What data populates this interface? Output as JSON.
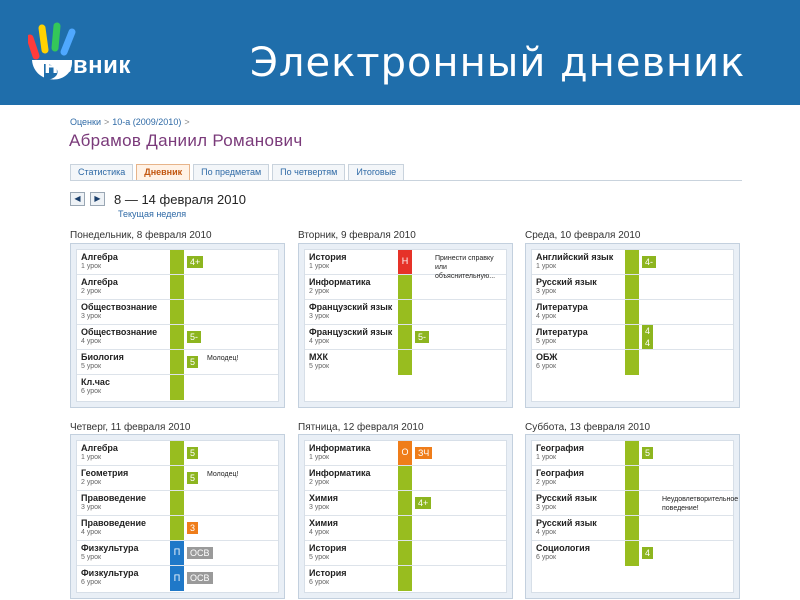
{
  "header": {
    "logo_text": "невник",
    "slide_title": "Электронный дневник"
  },
  "breadcrumb": [
    "Оценки",
    "10-а (2009/2010)"
  ],
  "student_name": "Абрамов Даниил Романович",
  "tabs": [
    {
      "label": "Статистика",
      "active": false
    },
    {
      "label": "Дневник",
      "active": true
    },
    {
      "label": "По предметам",
      "active": false
    },
    {
      "label": "По четвертям",
      "active": false
    },
    {
      "label": "Итоговые",
      "active": false
    }
  ],
  "week": {
    "prev_icon": "◀",
    "next_icon": "▶",
    "range": "8 — 14 февраля 2010",
    "current_label": "Текущая неделя"
  },
  "colors": {
    "header_bg": "#1f6eab",
    "present": "#98bd1f",
    "absent": "#e63228",
    "sick": "#1f78c8",
    "late": "#ef7d1a"
  },
  "days": [
    {
      "title": "Понедельник, 8 февраля 2010",
      "lessons": [
        {
          "subject": "Алгебра",
          "num": "1 урок",
          "marks": [
            {
              "v": "4+",
              "c": "green"
            }
          ]
        },
        {
          "subject": "Алгебра",
          "num": "2 урок"
        },
        {
          "subject": "Обществознание",
          "num": "3 урок"
        },
        {
          "subject": "Обществознание",
          "num": "4 урок",
          "marks": [
            {
              "v": "5-",
              "c": "green"
            }
          ]
        },
        {
          "subject": "Биология",
          "num": "5 урок",
          "marks": [
            {
              "v": "5",
              "c": "green"
            }
          ],
          "comment": "Молодец!"
        },
        {
          "subject": "Кл.час",
          "num": "6 урок"
        }
      ]
    },
    {
      "title": "Вторник, 9 февраля 2010",
      "lessons": [
        {
          "subject": "История",
          "num": "1 урок",
          "att": "absent",
          "att_text": "Н",
          "comment": "Принести справку или объяснительную..."
        },
        {
          "subject": "Информатика",
          "num": "2 урок"
        },
        {
          "subject": "Французский язык",
          "num": "3 урок"
        },
        {
          "subject": "Французский язык",
          "num": "4 урок",
          "marks": [
            {
              "v": "5-",
              "c": "green"
            }
          ]
        },
        {
          "subject": "МХК",
          "num": "5 урок"
        }
      ]
    },
    {
      "title": "Среда, 10 февраля 2010",
      "lessons": [
        {
          "subject": "Английский язык",
          "num": "1 урок",
          "marks": [
            {
              "v": "4-",
              "c": "green"
            }
          ]
        },
        {
          "subject": "Русский язык",
          "num": "3 урок"
        },
        {
          "subject": "Литература",
          "num": "4 урок"
        },
        {
          "subject": "Литература",
          "num": "5 урок",
          "marks": [
            {
              "v": "4",
              "c": "green"
            },
            {
              "v": "4",
              "c": "green"
            }
          ]
        },
        {
          "subject": "ОБЖ",
          "num": "6 урок"
        }
      ]
    },
    {
      "title": "Четверг, 11 февраля 2010",
      "lessons": [
        {
          "subject": "Алгебра",
          "num": "1 урок",
          "marks": [
            {
              "v": "5",
              "c": "green"
            }
          ]
        },
        {
          "subject": "Геометрия",
          "num": "2 урок",
          "marks": [
            {
              "v": "5",
              "c": "green"
            }
          ],
          "comment": "Молодец!"
        },
        {
          "subject": "Правоведение",
          "num": "3 урок"
        },
        {
          "subject": "Правоведение",
          "num": "4 урок",
          "marks": [
            {
              "v": "3",
              "c": "orange"
            }
          ]
        },
        {
          "subject": "Физкультура",
          "num": "5 урок",
          "att": "sick",
          "att_text": "П",
          "marks": [
            {
              "v": "ОСВ",
              "c": "gray"
            }
          ]
        },
        {
          "subject": "Физкультура",
          "num": "6 урок",
          "att": "sick",
          "att_text": "П",
          "marks": [
            {
              "v": "ОСВ",
              "c": "gray"
            }
          ]
        }
      ]
    },
    {
      "title": "Пятница, 12 февраля 2010",
      "lessons": [
        {
          "subject": "Информатика",
          "num": "1 урок",
          "att": "late",
          "att_text": "О",
          "marks": [
            {
              "v": "ЗЧ",
              "c": "orange"
            }
          ]
        },
        {
          "subject": "Информатика",
          "num": "2 урок"
        },
        {
          "subject": "Химия",
          "num": "3 урок",
          "marks": [
            {
              "v": "4+",
              "c": "green"
            }
          ]
        },
        {
          "subject": "Химия",
          "num": "4 урок"
        },
        {
          "subject": "История",
          "num": "5 урок"
        },
        {
          "subject": "История",
          "num": "6 урок"
        }
      ]
    },
    {
      "title": "Суббота, 13 февраля 2010",
      "lessons": [
        {
          "subject": "География",
          "num": "1 урок",
          "marks": [
            {
              "v": "5",
              "c": "green"
            }
          ]
        },
        {
          "subject": "География",
          "num": "2 урок"
        },
        {
          "subject": "Русский язык",
          "num": "3 урок",
          "comment": "Неудовлетворительное поведение!"
        },
        {
          "subject": "Русский язык",
          "num": "4 урок"
        },
        {
          "subject": "Социология",
          "num": "6 урок",
          "marks": [
            {
              "v": "4",
              "c": "green"
            }
          ]
        }
      ]
    }
  ]
}
